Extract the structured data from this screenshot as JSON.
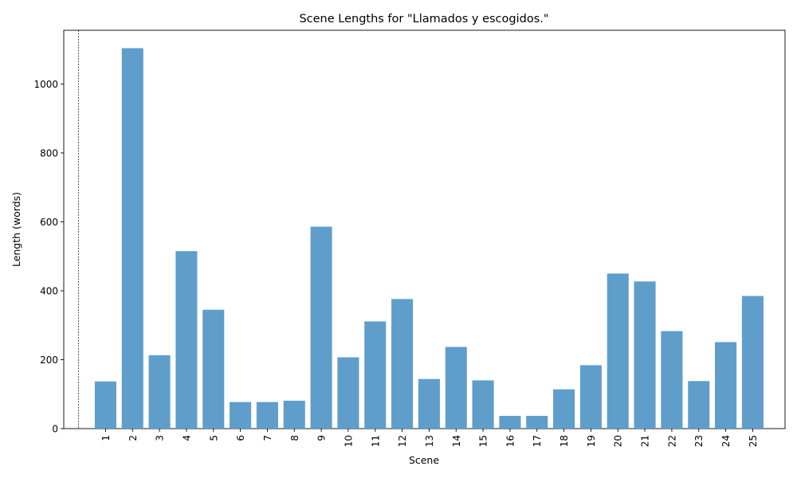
{
  "chart_data": {
    "type": "bar",
    "title": "Scene Lengths for \"Llamados y escogidos.\"",
    "xlabel": "Scene",
    "ylabel": "Length (words)",
    "ylim": [
      0,
      1156
    ],
    "yticks": [
      0,
      200,
      400,
      600,
      800,
      1000
    ],
    "grid": false,
    "bar_color": "#5f9ecb",
    "reference_line": {
      "style": "dashed",
      "color": "#000000"
    },
    "categories": [
      "1",
      "2",
      "3",
      "4",
      "5",
      "6",
      "7",
      "8",
      "9",
      "10",
      "11",
      "12",
      "13",
      "14",
      "15",
      "16",
      "17",
      "18",
      "19",
      "20",
      "21",
      "22",
      "23",
      "24",
      "25"
    ],
    "values": [
      137,
      1104,
      213,
      515,
      345,
      77,
      77,
      81,
      586,
      207,
      311,
      376,
      144,
      237,
      140,
      37,
      37,
      114,
      184,
      450,
      427,
      283,
      138,
      251,
      385
    ]
  }
}
